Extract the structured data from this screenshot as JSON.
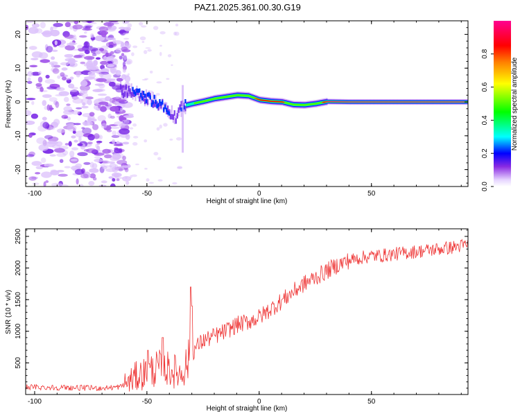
{
  "title": "PAZ1.2025.361.00.30.G19",
  "chart_data": [
    {
      "type": "heatmap",
      "title": "PAZ1.2025.361.00.30.G19",
      "xlabel": "Height of straight line (km)",
      "ylabel": "Frequency (Hz)",
      "xlim": [
        -104,
        93
      ],
      "ylim": [
        -25,
        24
      ],
      "xticks": [
        -100,
        -50,
        0,
        50
      ],
      "yticks": [
        -20,
        -10,
        0,
        10,
        20
      ],
      "tick_labels_x": [
        "-100",
        "-50",
        "0",
        "50"
      ],
      "tick_labels_y": [
        "-20",
        "-10",
        "0",
        "10",
        "20"
      ],
      "colorbar": {
        "label": "Normalized spectral amplitude",
        "range": [
          0,
          1
        ],
        "ticks": [
          0.0,
          0.2,
          0.4,
          0.6,
          0.8
        ],
        "tick_labels": [
          "0.0",
          "0.2",
          "0.4",
          "0.6",
          "0.8"
        ],
        "colormap": [
          "#ffffff",
          "#9040ff",
          "#0000ff",
          "#00ffff",
          "#00ff00",
          "#ffff00",
          "#ff8000",
          "#ff0000",
          "#ff0080"
        ]
      },
      "ridge": {
        "description": "frequency ridge of the signal vs height (Hz)",
        "x": [
          -62,
          -57,
          -52,
          -48,
          -44,
          -40,
          -37,
          -35,
          -33,
          -30,
          -25,
          -20,
          -15,
          -10,
          -5,
          0,
          5,
          10,
          15,
          20,
          25,
          30,
          40,
          60,
          93
        ],
        "y": [
          3.5,
          3.0,
          1.5,
          0.5,
          -1.0,
          -3.0,
          -4.5,
          -2.0,
          -1.0,
          -0.5,
          0.2,
          1.0,
          1.5,
          2.0,
          1.8,
          0.6,
          0.2,
          0.0,
          -0.8,
          -0.9,
          -0.5,
          0.1,
          0.0,
          0.0,
          0.0
        ],
        "amplitude": [
          0.15,
          0.2,
          0.2,
          0.22,
          0.22,
          0.2,
          0.15,
          0.2,
          0.3,
          0.45,
          0.6,
          0.65,
          0.7,
          0.72,
          0.7,
          0.85,
          0.85,
          0.85,
          0.55,
          0.5,
          0.6,
          0.95,
          1.0,
          1.0,
          1.0
        ]
      },
      "noise_region_x": [
        -104,
        -58
      ]
    },
    {
      "type": "line",
      "xlabel": "Height of straight line (km)",
      "ylabel": "SNR (10 * v/v)",
      "xlim": [
        -104,
        93
      ],
      "ylim": [
        0,
        2620
      ],
      "xticks": [
        -100,
        -50,
        0,
        50
      ],
      "yticks": [
        500,
        1000,
        1500,
        2000,
        2500
      ],
      "tick_labels_x": [
        "-100",
        "-50",
        "0",
        "50"
      ],
      "tick_labels_y": [
        "500",
        "1000",
        "1500",
        "2000",
        "2500"
      ],
      "color": "#ee3333",
      "trend": {
        "x": [
          -104,
          -90,
          -80,
          -70,
          -62,
          -58,
          -55,
          -50,
          -45,
          -40,
          -35,
          -32,
          -30,
          -28,
          -25,
          -20,
          -15,
          -10,
          -5,
          0,
          5,
          10,
          15,
          20,
          25,
          30,
          35,
          40,
          45,
          50,
          55,
          60,
          65,
          70,
          75,
          80,
          85,
          90,
          93
        ],
        "y": [
          120,
          110,
          105,
          100,
          120,
          200,
          280,
          350,
          420,
          400,
          330,
          500,
          650,
          750,
          850,
          920,
          1000,
          1100,
          1150,
          1220,
          1350,
          1480,
          1620,
          1750,
          1850,
          1950,
          2050,
          2120,
          2160,
          2190,
          2200,
          2220,
          2240,
          2260,
          2280,
          2300,
          2320,
          2350,
          2370
        ]
      },
      "spikes": [
        {
          "x": -30.5,
          "y": 1700
        },
        {
          "x": -30.0,
          "y": 1400
        },
        {
          "x": -49.5,
          "y": 700
        },
        {
          "x": -43.0,
          "y": 900
        }
      ]
    }
  ]
}
